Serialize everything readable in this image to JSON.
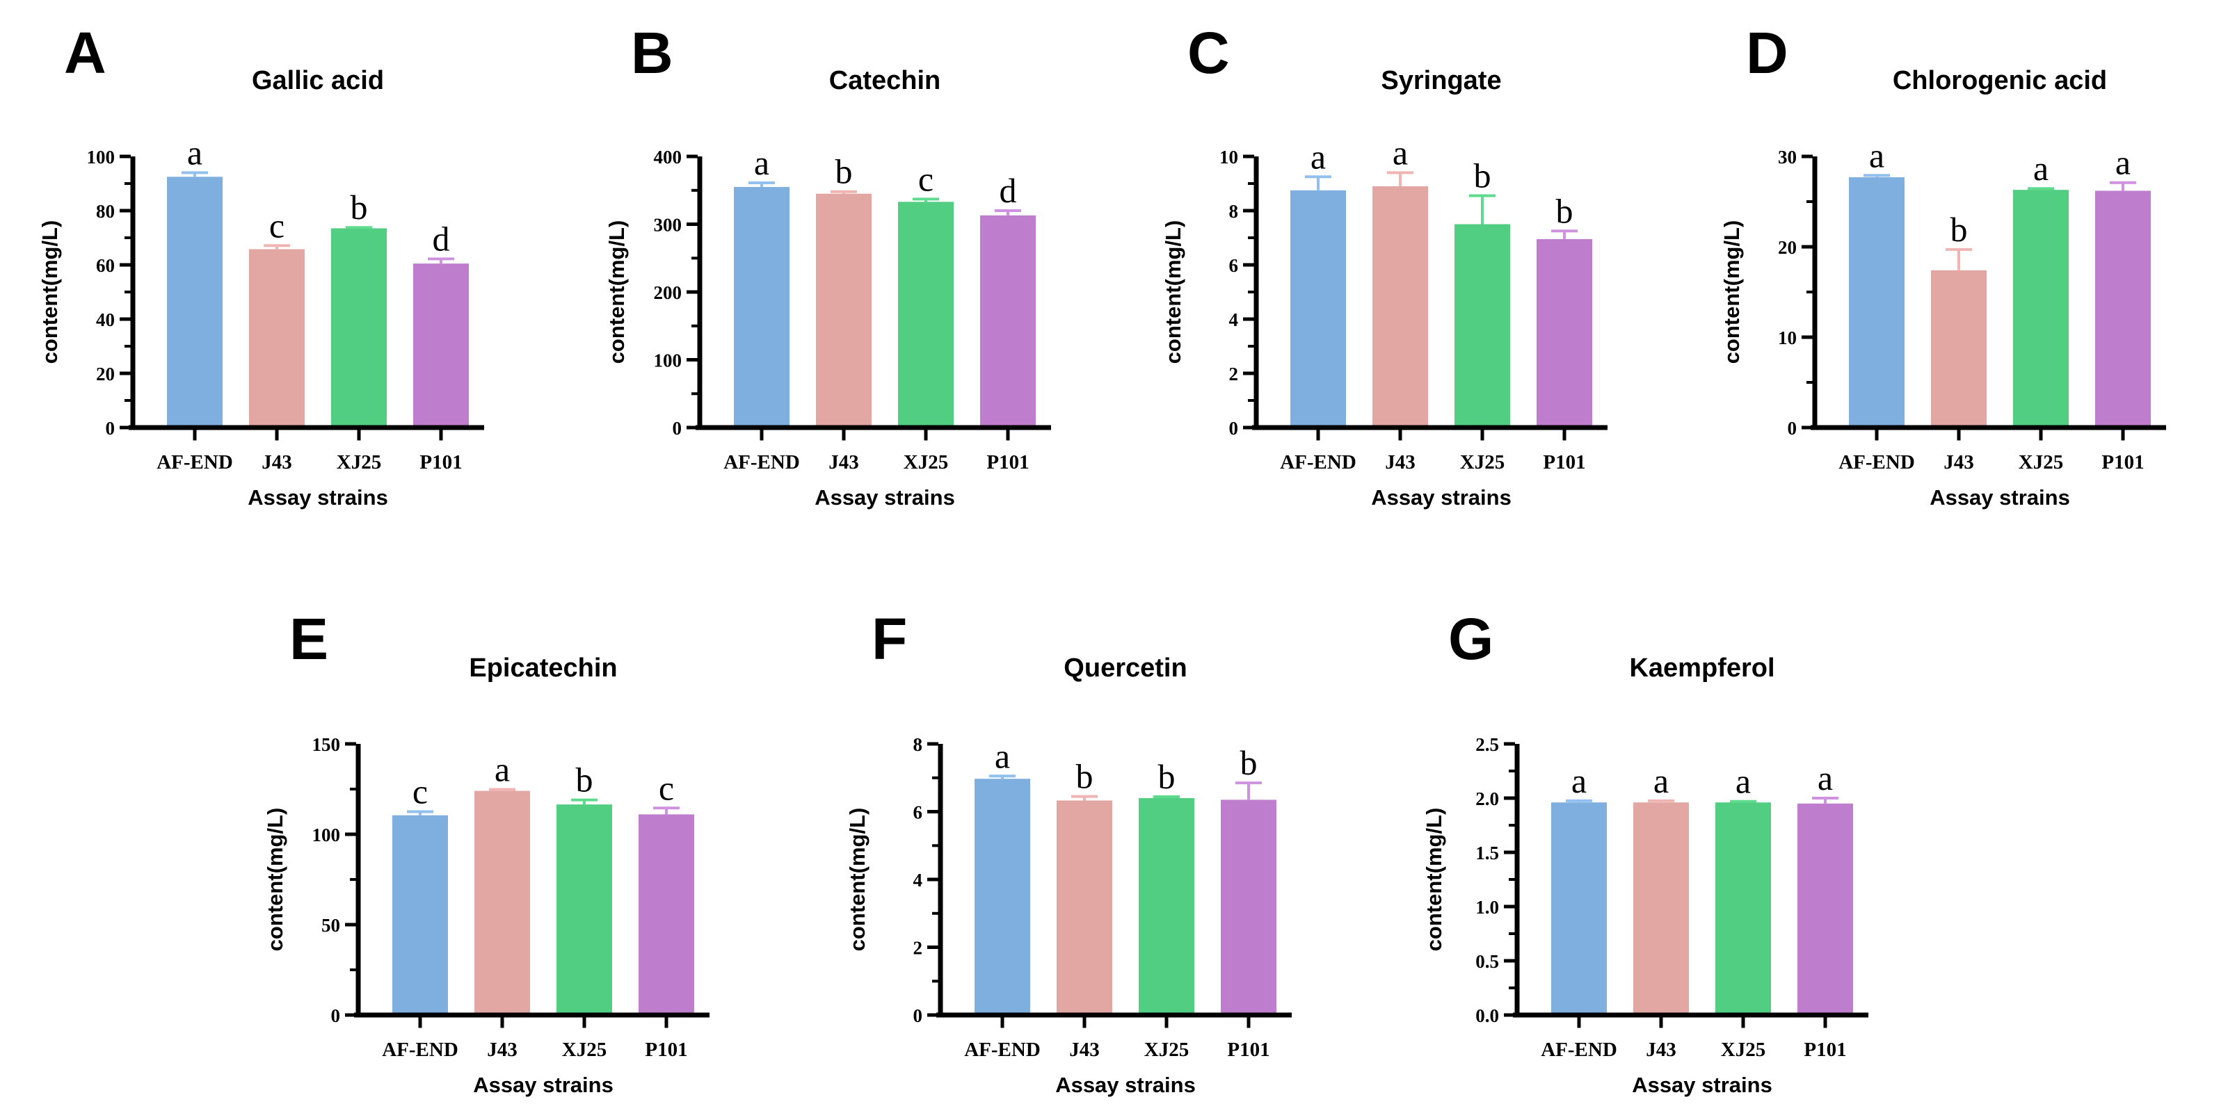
{
  "style": {
    "bar_colors": [
      "#7FAFDF",
      "#E2A6A3",
      "#52CE82",
      "#BF7DCE"
    ],
    "error_bar_colors": [
      "#92C0EE",
      "#F0B5B2",
      "#5FDB8E",
      "#CF92DE"
    ],
    "axis_color": "#000000",
    "text_color": "#000000",
    "background": "#FFFFFF"
  },
  "chart_data": [
    {
      "type": "bar",
      "panel_letter": "A",
      "title": "Gallic acid",
      "categories": [
        "AF-END",
        "J43",
        "XJ25",
        "P101"
      ],
      "values": [
        92.5,
        65.8,
        73.5,
        60.5
      ],
      "errors": [
        1.5,
        1.3,
        0.3,
        1.7
      ],
      "sig_letters": [
        "a",
        "c",
        "b",
        "d"
      ],
      "xlabel": "Assay strains",
      "ylabel": "content(mg/L)",
      "ylim": [
        0,
        100
      ],
      "ytick_values": [
        0,
        20,
        40,
        60,
        80,
        100
      ],
      "ytick_labels": [
        "0",
        "20",
        "40",
        "60",
        "80",
        "100"
      ],
      "grid": false,
      "legend": "none"
    },
    {
      "type": "bar",
      "panel_letter": "B",
      "title": "Catechin",
      "categories": [
        "AF-END",
        "J43",
        "XJ25",
        "P101"
      ],
      "values": [
        355,
        345,
        333,
        313
      ],
      "errors": [
        6,
        3,
        4,
        7
      ],
      "sig_letters": [
        "a",
        "b",
        "c",
        "d"
      ],
      "xlabel": "Assay strains",
      "ylabel": "content(mg/L)",
      "ylim": [
        0,
        400
      ],
      "ytick_values": [
        0,
        100,
        200,
        300,
        400
      ],
      "ytick_labels": [
        "0",
        "100",
        "200",
        "300",
        "400"
      ],
      "grid": false,
      "legend": "none"
    },
    {
      "type": "bar",
      "panel_letter": "C",
      "title": "Syringate",
      "categories": [
        "AF-END",
        "J43",
        "XJ25",
        "P101"
      ],
      "values": [
        8.75,
        8.9,
        7.5,
        6.95
      ],
      "errors": [
        0.5,
        0.5,
        1.05,
        0.3
      ],
      "sig_letters": [
        "a",
        "a",
        "b",
        "b"
      ],
      "xlabel": "Assay strains",
      "ylabel": "content(mg/L)",
      "ylim": [
        0,
        10
      ],
      "ytick_values": [
        0,
        2,
        4,
        6,
        8,
        10
      ],
      "ytick_labels": [
        "0",
        "2",
        "4",
        "6",
        "8",
        "10"
      ],
      "grid": false,
      "legend": "none"
    },
    {
      "type": "bar",
      "panel_letter": "D",
      "title": "Chlorogenic acid",
      "categories": [
        "AF-END",
        "J43",
        "XJ25",
        "P101"
      ],
      "values": [
        27.7,
        17.4,
        26.3,
        26.2
      ],
      "errors": [
        0.2,
        2.3,
        0.15,
        0.9
      ],
      "sig_letters": [
        "a",
        "b",
        "a",
        "a"
      ],
      "xlabel": "Assay strains",
      "ylabel": "content(mg/L)",
      "ylim": [
        0,
        30
      ],
      "ytick_values": [
        0,
        10,
        20,
        30
      ],
      "ytick_labels": [
        "0",
        "10",
        "20",
        "30"
      ],
      "grid": false,
      "legend": "none"
    },
    {
      "type": "bar",
      "panel_letter": "E",
      "title": "Epicatechin",
      "categories": [
        "AF-END",
        "J43",
        "XJ25",
        "P101"
      ],
      "values": [
        110.5,
        124,
        116.5,
        111
      ],
      "errors": [
        2,
        0.8,
        2.5,
        3.5
      ],
      "sig_letters": [
        "c",
        "a",
        "b",
        "c"
      ],
      "xlabel": "Assay strains",
      "ylabel": "content(mg/L)",
      "ylim": [
        0,
        150
      ],
      "ytick_values": [
        0,
        50,
        100,
        150
      ],
      "ytick_labels": [
        "0",
        "50",
        "100",
        "150"
      ],
      "grid": false,
      "legend": "none"
    },
    {
      "type": "bar",
      "panel_letter": "F",
      "title": "Quercetin",
      "categories": [
        "AF-END",
        "J43",
        "XJ25",
        "P101"
      ],
      "values": [
        6.97,
        6.33,
        6.4,
        6.35
      ],
      "errors": [
        0.08,
        0.12,
        0.04,
        0.5
      ],
      "sig_letters": [
        "a",
        "b",
        "b",
        "b"
      ],
      "xlabel": "Assay strains",
      "ylabel": "content(mg/L)",
      "ylim": [
        0,
        8
      ],
      "ytick_values": [
        0,
        2,
        4,
        6,
        8
      ],
      "ytick_labels": [
        "0",
        "2",
        "4",
        "6",
        "8"
      ],
      "grid": false,
      "legend": "none"
    },
    {
      "type": "bar",
      "panel_letter": "G",
      "title": "Kaempferol",
      "categories": [
        "AF-END",
        "J43",
        "XJ25",
        "P101"
      ],
      "values": [
        1.96,
        1.96,
        1.96,
        1.95
      ],
      "errors": [
        0.015,
        0.015,
        0.01,
        0.05
      ],
      "sig_letters": [
        "a",
        "a",
        "a",
        "a"
      ],
      "xlabel": "Assay strains",
      "ylabel": "content(mg/L)",
      "ylim": [
        0,
        2.5
      ],
      "ytick_values": [
        0,
        0.5,
        1,
        1.5,
        2,
        2.5
      ],
      "ytick_labels": [
        "0.0",
        "0.5",
        "1.0",
        "1.5",
        "2.0",
        "2.5"
      ],
      "grid": false,
      "legend": "none"
    }
  ]
}
